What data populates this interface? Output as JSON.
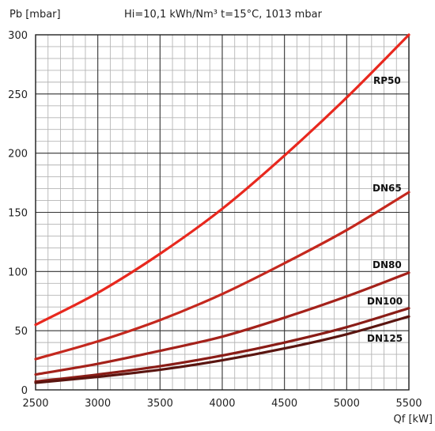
{
  "chart_data": {
    "type": "line",
    "title": "",
    "conditions": "Hi=10,1 kWh/Nm³  t=15°C, 1013 mbar",
    "ylabel": "Pb [mbar]",
    "xlabel": "Qf [kW]",
    "xlim": [
      2500,
      5500
    ],
    "ylim": [
      0,
      300
    ],
    "xticks": [
      2500,
      3000,
      3500,
      4000,
      4500,
      5000,
      5500
    ],
    "yticks": [
      0,
      50,
      100,
      150,
      200,
      250,
      300
    ],
    "x_tick_labels": [
      "2500",
      "3000",
      "3500",
      "4000",
      "4500",
      "5000",
      "5500"
    ],
    "y_tick_labels": [
      "0",
      "50",
      "100",
      "150",
      "200",
      "250",
      "300"
    ],
    "grid": true,
    "legend": "none",
    "x": [
      2500,
      3000,
      3500,
      4000,
      4500,
      5000,
      5500
    ],
    "series": [
      {
        "name": "RP50",
        "color": "#e8281e",
        "values": [
          55,
          82,
          115,
          153,
          198,
          247,
          300
        ]
      },
      {
        "name": "DN65",
        "color": "#c4281e",
        "values": [
          26,
          41,
          59,
          81,
          107,
          135,
          167
        ]
      },
      {
        "name": "DN80",
        "color": "#a4211a",
        "values": [
          13,
          22,
          33,
          45,
          61,
          79,
          99
        ]
      },
      {
        "name": "DN100",
        "color": "#8a1c16",
        "values": [
          7,
          13,
          20,
          29,
          40,
          53,
          69
        ]
      },
      {
        "name": "DN125",
        "color": "#5a1510",
        "values": [
          6,
          11,
          17,
          25,
          35,
          47,
          62
        ]
      }
    ]
  }
}
